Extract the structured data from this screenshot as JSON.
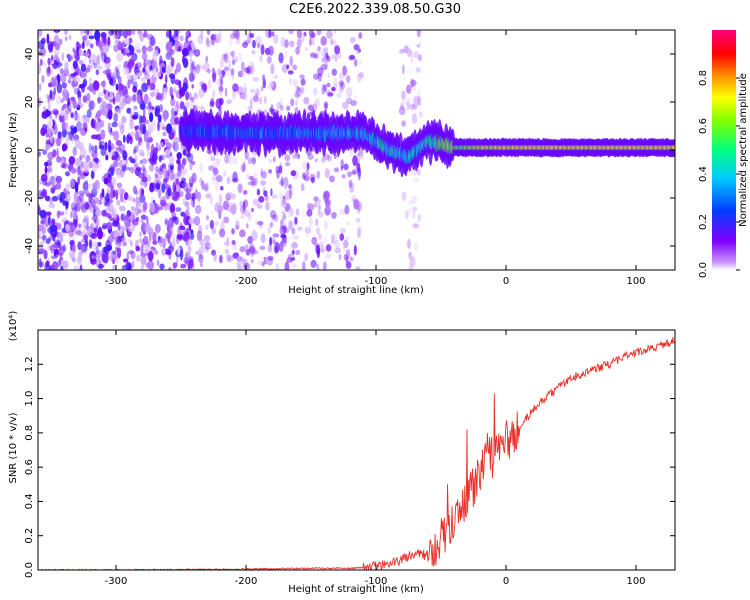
{
  "title": "C2E6.2022.339.08.50.G30",
  "colors": {
    "snr_line": "#e8302a",
    "spectro_low": "#e6d3f7",
    "spectro_mid": "#6a00ff",
    "spectro_high": "#ff0000"
  },
  "colorbar": {
    "label": "Normalized spectral amplitude",
    "ticks": [
      "0.0",
      "0.2",
      "0.4",
      "0.6",
      "0.8"
    ],
    "tick_values": [
      0.0,
      0.2,
      0.4,
      0.6,
      0.8
    ],
    "range": [
      0,
      1
    ],
    "colormap": "rainbow (magenta-blue-cyan-green-yellow-red-magenta)"
  },
  "chart_data": [
    {
      "type": "heatmap",
      "title": "",
      "xlabel": "Height of straight line (km)",
      "ylabel": "Frequency (Hz)",
      "xlim": [
        -360,
        130
      ],
      "ylim": [
        -50,
        50
      ],
      "x_ticks": [
        -300,
        -200,
        -100,
        0,
        100
      ],
      "y_ticks": [
        -40,
        -20,
        0,
        20,
        40
      ],
      "x_tick_labels": [
        "-300",
        "-200",
        "-100",
        "0",
        "100"
      ],
      "y_tick_labels": [
        "-40",
        "-20",
        "0",
        "20",
        "40"
      ],
      "signal_ridge": {
        "x": [
          -250,
          -200,
          -150,
          -110,
          -90,
          -75,
          -60,
          -40,
          -20,
          0,
          50,
          100,
          130
        ],
        "center_freq": [
          8,
          7,
          7,
          7,
          0,
          -3,
          4,
          1,
          1,
          1,
          1,
          1,
          1
        ],
        "peak_amplitude": [
          0.35,
          0.4,
          0.4,
          0.5,
          0.55,
          0.5,
          0.6,
          0.75,
          0.9,
          0.95,
          0.95,
          0.95,
          0.95
        ]
      },
      "noise_regions": [
        {
          "x_range": [
            -360,
            -240
          ],
          "density": "high"
        },
        {
          "x_range": [
            -240,
            -110
          ],
          "density": "medium"
        },
        {
          "x_range": [
            -80,
            -65
          ],
          "density": "low"
        }
      ]
    },
    {
      "type": "line",
      "title": "",
      "xlabel": "Height of straight line (km)",
      "ylabel": "SNR (10 * v/v)",
      "multiplier_label": "(x10⁴)",
      "xlim": [
        -360,
        130
      ],
      "ylim": [
        0,
        1.4
      ],
      "x_ticks": [
        -300,
        -200,
        -100,
        0,
        100
      ],
      "y_ticks": [
        0.0,
        0.2,
        0.4,
        0.6,
        0.8,
        1.0,
        1.2
      ],
      "x_tick_labels": [
        "-300",
        "-200",
        "-100",
        "0",
        "100"
      ],
      "y_tick_labels": [
        "0.0",
        "0.2",
        "0.4",
        "0.6",
        "0.8",
        "1.0",
        "1.2"
      ],
      "series": [
        {
          "x": [
            -360,
            -300,
            -200,
            -150,
            -120,
            -100,
            -90,
            -80,
            -70,
            -60,
            -50,
            -40,
            -30,
            -20,
            -15,
            -10,
            -5,
            0,
            10,
            20,
            30,
            40,
            50,
            60,
            70,
            80,
            90,
            100,
            110,
            120,
            130
          ],
          "y": [
            0.0,
            0.0,
            0.005,
            0.01,
            0.01,
            0.02,
            0.04,
            0.06,
            0.1,
            0.08,
            0.18,
            0.3,
            0.42,
            0.55,
            0.7,
            0.65,
            0.72,
            0.75,
            0.82,
            0.93,
            1.0,
            1.06,
            1.12,
            1.15,
            1.18,
            1.2,
            1.24,
            1.27,
            1.29,
            1.31,
            1.34
          ],
          "spikes": [
            {
              "x": -9,
              "y": 1.03
            },
            {
              "x": -45,
              "y": 0.5
            },
            {
              "x": -30,
              "y": 0.82
            },
            {
              "x": 10,
              "y": 0.78
            }
          ]
        }
      ]
    }
  ]
}
